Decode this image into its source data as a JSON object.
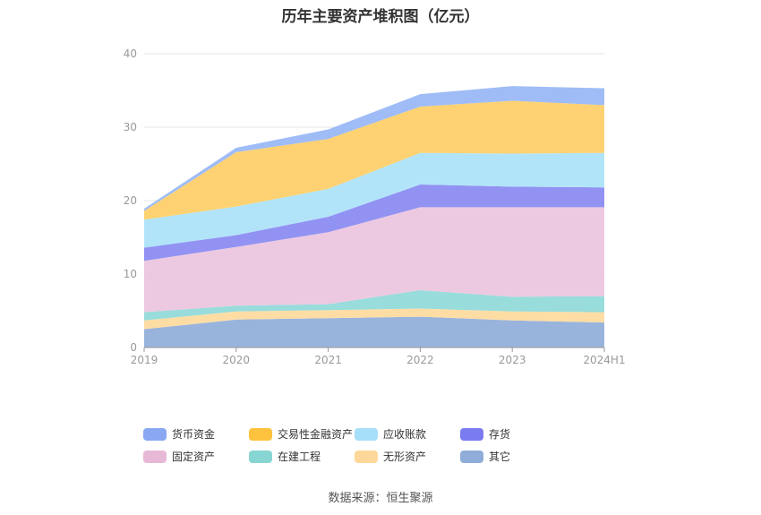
{
  "title": "历年主要资产堆积图（亿元）",
  "source": "数据来源：恒生聚源",
  "chart_data": {
    "type": "area",
    "stacked": true,
    "title": "历年主要资产堆积图（亿元）",
    "xlabel": "",
    "ylabel": "",
    "categories": [
      "2019",
      "2020",
      "2021",
      "2022",
      "2023",
      "2024H1"
    ],
    "ylim": [
      0,
      40
    ],
    "yticks": [
      0,
      10,
      20,
      30,
      40
    ],
    "grid": true,
    "legend_position": "bottom",
    "series": [
      {
        "name": "其它",
        "color": "#94b0da",
        "values": [
          2.5,
          3.8,
          4.0,
          4.2,
          3.7,
          3.4
        ]
      },
      {
        "name": "无形资产",
        "color": "#fedba0",
        "values": [
          1.2,
          1.1,
          1.1,
          1.1,
          1.2,
          1.4
        ]
      },
      {
        "name": "在建工程",
        "color": "#92dad9",
        "values": [
          1.1,
          0.8,
          0.8,
          2.5,
          2.0,
          2.2
        ]
      },
      {
        "name": "固定资产",
        "color": "#ebc6df",
        "values": [
          7.0,
          8.0,
          9.8,
          11.3,
          12.2,
          12.1
        ]
      },
      {
        "name": "存货",
        "color": "#8c8cf2",
        "values": [
          1.8,
          1.6,
          2.1,
          3.1,
          2.8,
          2.7
        ]
      },
      {
        "name": "应收账款",
        "color": "#aee3f9",
        "values": [
          3.8,
          3.9,
          3.8,
          4.3,
          4.5,
          4.7
        ]
      },
      {
        "name": "交易性金融资产",
        "color": "#fed06a",
        "values": [
          1.2,
          7.4,
          6.8,
          6.3,
          7.2,
          6.5
        ]
      },
      {
        "name": "货币资金",
        "color": "#9ab8f7",
        "values": [
          0.3,
          0.6,
          1.3,
          1.7,
          2.0,
          2.3
        ]
      }
    ]
  },
  "legend": [
    {
      "name": "货币资金",
      "color": "#8aa8f2"
    },
    {
      "name": "交易性金融资产",
      "color": "#fdc33f"
    },
    {
      "name": "应收账款",
      "color": "#a6dff8"
    },
    {
      "name": "存货",
      "color": "#7b7bf0"
    },
    {
      "name": "固定资产",
      "color": "#e8b9d6"
    },
    {
      "name": "在建工程",
      "color": "#88d6d3"
    },
    {
      "name": "无形资产",
      "color": "#fdd89a"
    },
    {
      "name": "其它",
      "color": "#8fadd8"
    }
  ]
}
